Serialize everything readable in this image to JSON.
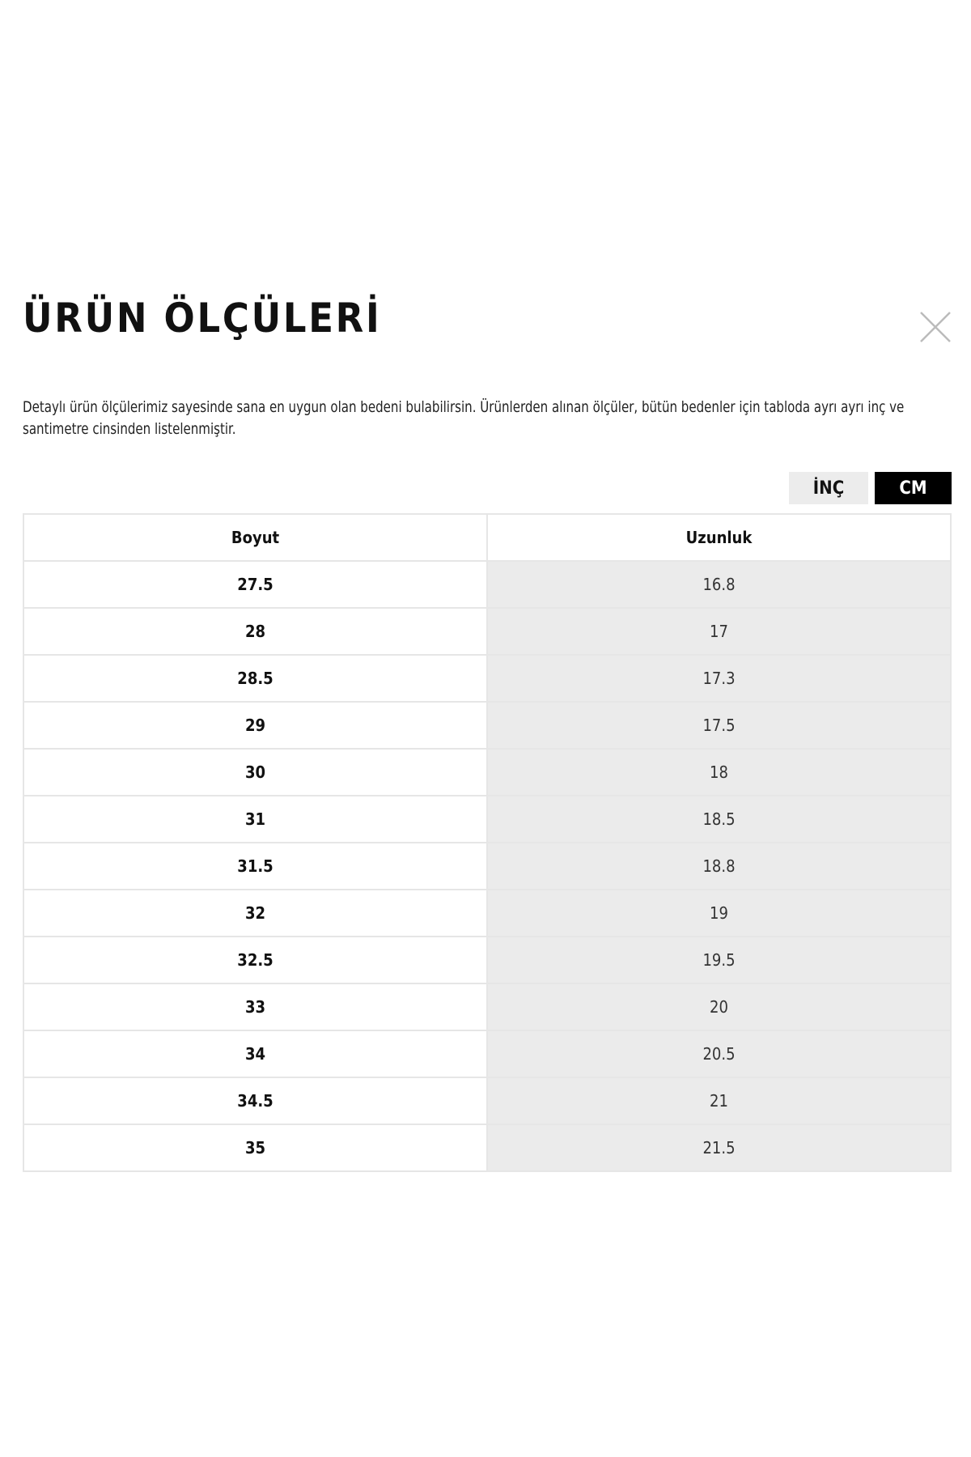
{
  "title": "ÜRÜN ÖLÇÜLERİ",
  "description": "Detaylı ürün ölçülerimiz sayesinde sana en uygun olan bedeni bulabilirsin. Ürünlerden alınan ölçüler, bütün bedenler için tabloda ayrı ayrı inç ve santimetre cinsinden listelenmiştir.",
  "units": {
    "inch": "İNÇ",
    "cm": "CM",
    "selected": "CM"
  },
  "table": {
    "headers": [
      "Boyut",
      "Uzunluk"
    ],
    "rows": [
      [
        "27.5",
        "16.8"
      ],
      [
        "28",
        "17"
      ],
      [
        "28.5",
        "17.3"
      ],
      [
        "29",
        "17.5"
      ],
      [
        "30",
        "18"
      ],
      [
        "31",
        "18.5"
      ],
      [
        "31.5",
        "18.8"
      ],
      [
        "32",
        "19"
      ],
      [
        "32.5",
        "19.5"
      ],
      [
        "33",
        "20"
      ],
      [
        "34",
        "20.5"
      ],
      [
        "34.5",
        "21"
      ],
      [
        "35",
        "21.5"
      ]
    ]
  },
  "icons": {
    "close": "close-icon"
  }
}
